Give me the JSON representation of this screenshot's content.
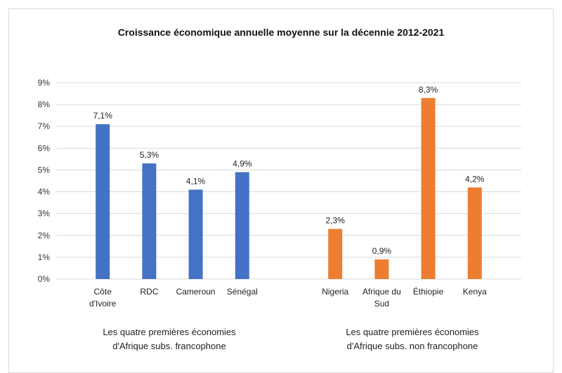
{
  "chart_data": {
    "type": "bar",
    "title": "Croissance économique annuelle moyenne sur la décennie 2012-2021",
    "ylim": [
      0,
      9
    ],
    "yticks": [
      "0%",
      "1%",
      "2%",
      "3%",
      "4%",
      "5%",
      "6%",
      "7%",
      "8%",
      "9%"
    ],
    "grid": true,
    "groups": [
      {
        "label": "Les quatre premières économies d'Afrique subs.  francophone",
        "color": "#4472C4",
        "categories": [
          "Côte d'Ivoire",
          "RDC",
          "Cameroun",
          "Sénégal"
        ],
        "category_lines": [
          [
            "Côte",
            "d'Ivoire"
          ],
          [
            "RDC"
          ],
          [
            "Cameroun"
          ],
          [
            "Sénégal"
          ]
        ],
        "values": [
          7.1,
          5.3,
          4.1,
          4.9
        ],
        "data_labels": [
          "7,1%",
          "5,3%",
          "4,1%",
          "4,9%"
        ]
      },
      {
        "label": "Les quatre premières économies d'Afrique subs.  non francophone",
        "color": "#ED7D31",
        "categories": [
          "Nigeria",
          "Afrique du Sud",
          "Éthiopie",
          "Kenya"
        ],
        "category_lines": [
          [
            "Nigeria"
          ],
          [
            "Afrique du",
            "Sud"
          ],
          [
            "Éthiopie"
          ],
          [
            "Kenya"
          ]
        ],
        "values": [
          2.3,
          0.9,
          8.3,
          4.2
        ],
        "data_labels": [
          "2,3%",
          "0,9%",
          "8,3%",
          "4,2%"
        ]
      }
    ]
  },
  "group_labels": {
    "left": {
      "line1": "Les quatre premières économies",
      "line2": "d'Afrique subs.  francophone"
    },
    "right": {
      "line1": "Les quatre premières économies",
      "line2": "d'Afrique subs.  non francophone"
    }
  }
}
